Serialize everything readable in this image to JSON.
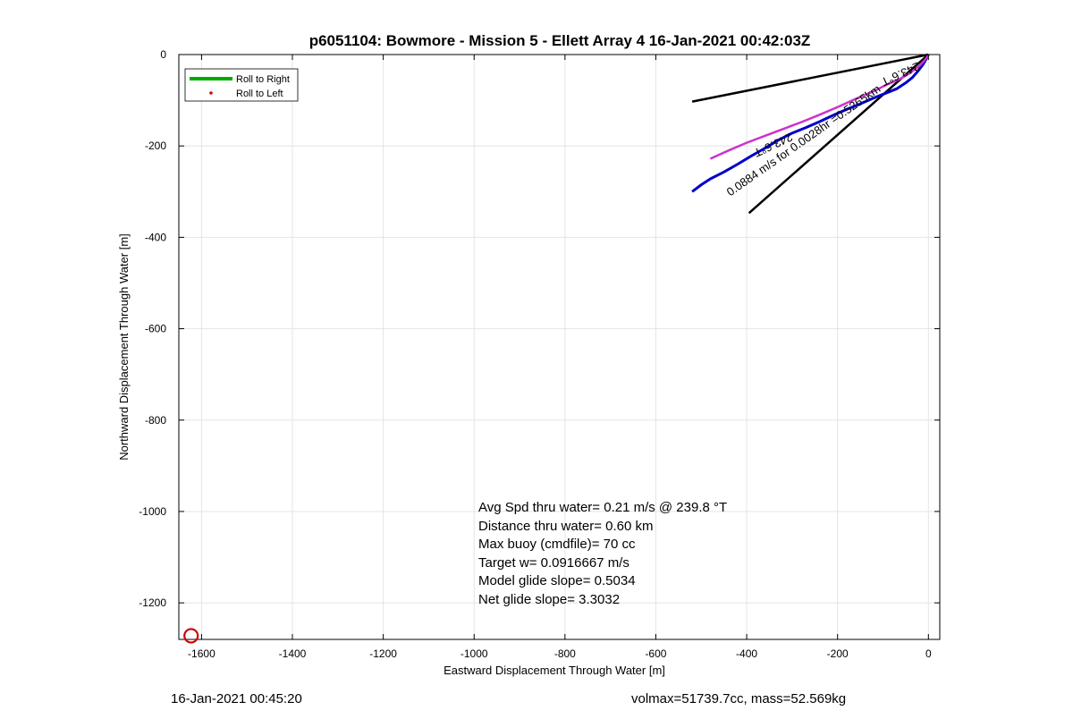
{
  "chart_data": {
    "type": "line",
    "title": "p6051104: Bowmore - Mission 5 - Ellett Array 4 16-Jan-2021 00:42:03Z",
    "xlabel": "Eastward Displacement Through Water [m]",
    "ylabel": "Northward Displacement Through Water [m]",
    "xlim": [
      -1650,
      25
    ],
    "ylim": [
      -1280,
      0
    ],
    "xticks": [
      -1600,
      -1400,
      -1200,
      -1000,
      -800,
      -600,
      -400,
      -200,
      0
    ],
    "yticks": [
      0,
      -200,
      -400,
      -600,
      -800,
      -1000,
      -1200
    ],
    "grid": true,
    "legend": {
      "placement": "top-left",
      "entries": [
        {
          "label": "Roll to Right",
          "color": "#00aa00",
          "marker": "line"
        },
        {
          "label": "Roll to Left",
          "color": "#dd0000",
          "marker": "dot"
        }
      ]
    },
    "series": [
      {
        "color": "#0000cc",
        "x": [
          0,
          -5,
          -12,
          -22,
          -35,
          -50,
          -70,
          -95,
          -120,
          -150,
          -180,
          -210,
          -240,
          -270,
          -300,
          -330,
          -360,
          -390,
          -420,
          -450,
          -480,
          -500,
          -520
        ],
        "y": [
          0,
          -10,
          -22,
          -35,
          -50,
          -62,
          -75,
          -85,
          -95,
          -108,
          -120,
          -133,
          -147,
          -160,
          -172,
          -187,
          -205,
          -222,
          -240,
          -257,
          -272,
          -285,
          -300
        ]
      },
      {
        "color": "#cc33cc",
        "x": [
          0,
          -8,
          -20,
          -40,
          -60,
          -90,
          -120,
          -160,
          -200,
          -240,
          -280,
          -320,
          -360,
          -400,
          -440,
          -480
        ],
        "y": [
          -2,
          -12,
          -25,
          -40,
          -52,
          -65,
          -80,
          -97,
          -115,
          -132,
          -148,
          -163,
          -178,
          -193,
          -210,
          -228
        ]
      }
    ],
    "heading_lines": [
      {
        "x": [
          0,
          -520
        ],
        "y": [
          0,
          -103
        ],
        "label": "243.6°T"
      },
      {
        "x": [
          0,
          -395
        ],
        "y": [
          0,
          -347
        ],
        "label": ""
      }
    ],
    "trajectory_labels": [
      {
        "text": "0.0884 m/s for 0.0028hr =0.5265km",
        "x": -270,
        "y": -195,
        "angle": -35
      },
      {
        "text": "243.6°T",
        "x": -345,
        "y": -190,
        "angle": 155
      },
      {
        "text": "243.6°T",
        "x": -65,
        "y": -35,
        "angle": 155
      }
    ],
    "start_marker": {
      "x": -1623,
      "y": -1272,
      "color": "#cc0000"
    },
    "annotations": [
      "Avg Spd thru water=  0.21 m/s @ 239.8 °T",
      "Distance thru water=  0.60 km",
      "Max buoy (cmdfile)= 70 cc",
      "Target w= 0.0916667 m/s",
      "Model glide slope= 0.5034",
      "Net glide slope= 3.3032"
    ]
  },
  "footer": {
    "left": "16-Jan-2021 00:45:20",
    "right": "volmax=51739.7cc, mass=52.569kg"
  }
}
